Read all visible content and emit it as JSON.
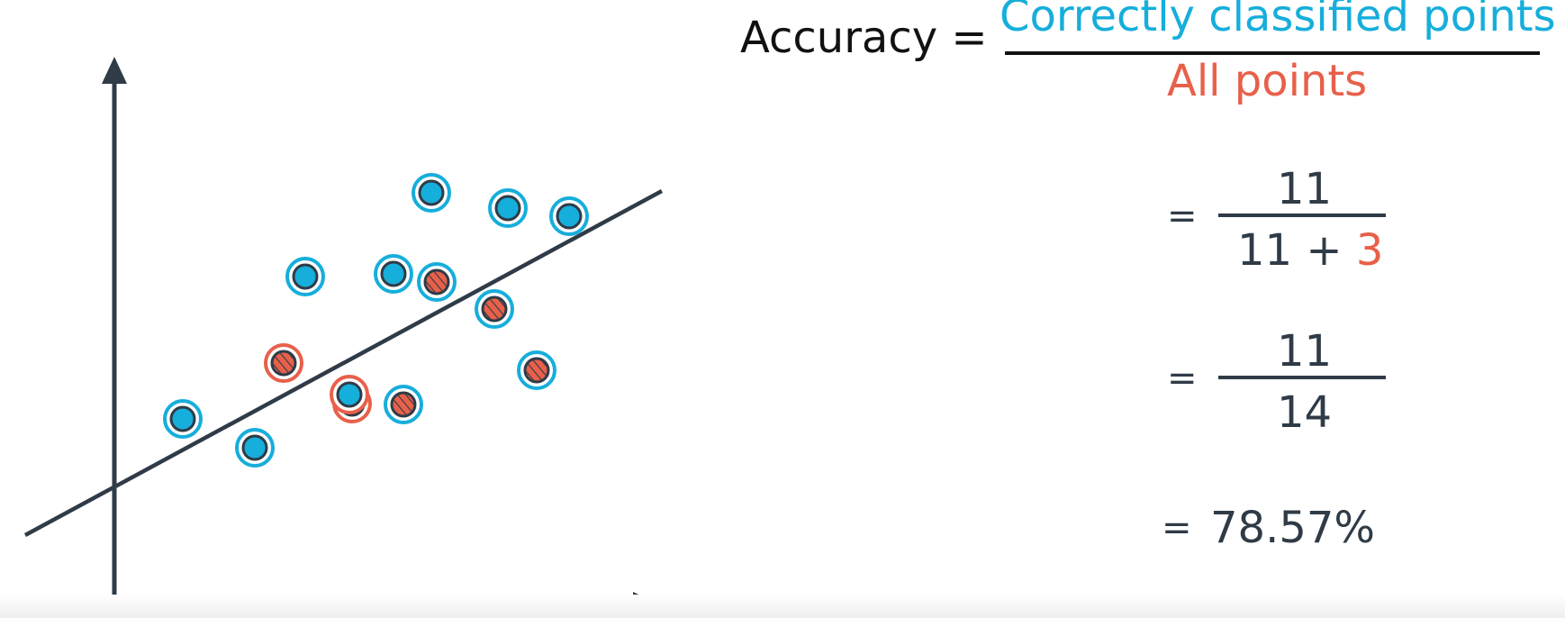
{
  "formula": {
    "accuracy_label": "Accuracy =",
    "numerator_label": "Correctly classified points",
    "denominator_label": "All points",
    "step1": {
      "equals": "=",
      "numerator": "11",
      "denominator_prefix": "11 + ",
      "denominator_highlight": "3"
    },
    "step2": {
      "equals": "=",
      "numerator": "11",
      "denominator": "14"
    },
    "result": {
      "equals": "=",
      "value": "78.57%"
    }
  },
  "colors": {
    "blue": "#16aedb",
    "red": "#e8604a",
    "axis": "#2f3b47",
    "text": "#2f3b47"
  },
  "points": [
    {
      "class": "blue",
      "correct": true
    },
    {
      "class": "blue",
      "correct": true
    },
    {
      "class": "blue",
      "correct": true
    },
    {
      "class": "red",
      "correct": true
    },
    {
      "class": "blue",
      "correct": true
    },
    {
      "class": "blue",
      "correct": true
    },
    {
      "class": "red",
      "correct": false
    },
    {
      "class": "red",
      "correct": true
    },
    {
      "class": "red",
      "correct": false
    },
    {
      "class": "red",
      "correct": true
    },
    {
      "class": "blue",
      "correct": true
    },
    {
      "class": "blue",
      "correct": false
    },
    {
      "class": "red",
      "correct": true
    },
    {
      "class": "blue",
      "correct": true
    }
  ]
}
